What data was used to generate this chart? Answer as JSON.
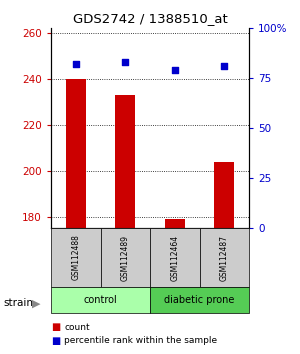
{
  "title": "GDS2742 / 1388510_at",
  "samples": [
    "GSM112488",
    "GSM112489",
    "GSM112464",
    "GSM112487"
  ],
  "groups": [
    "control",
    "control",
    "diabetic prone",
    "diabetic prone"
  ],
  "counts": [
    240,
    233,
    179,
    204
  ],
  "percentiles": [
    82,
    83,
    79,
    81
  ],
  "ylim_left": [
    175,
    262
  ],
  "ylim_right": [
    0,
    100
  ],
  "yticks_left": [
    180,
    200,
    220,
    240,
    260
  ],
  "yticks_right": [
    0,
    25,
    50,
    75,
    100
  ],
  "ytick_labels_right": [
    "0",
    "25",
    "50",
    "75",
    "100%"
  ],
  "bar_color": "#cc0000",
  "dot_color": "#0000cc",
  "group_colors": {
    "control": "#aaffaa",
    "diabetic prone": "#55cc55"
  },
  "sample_box_color": "#cccccc",
  "legend_count_color": "#cc0000",
  "legend_pct_color": "#0000cc",
  "bar_width": 0.4
}
